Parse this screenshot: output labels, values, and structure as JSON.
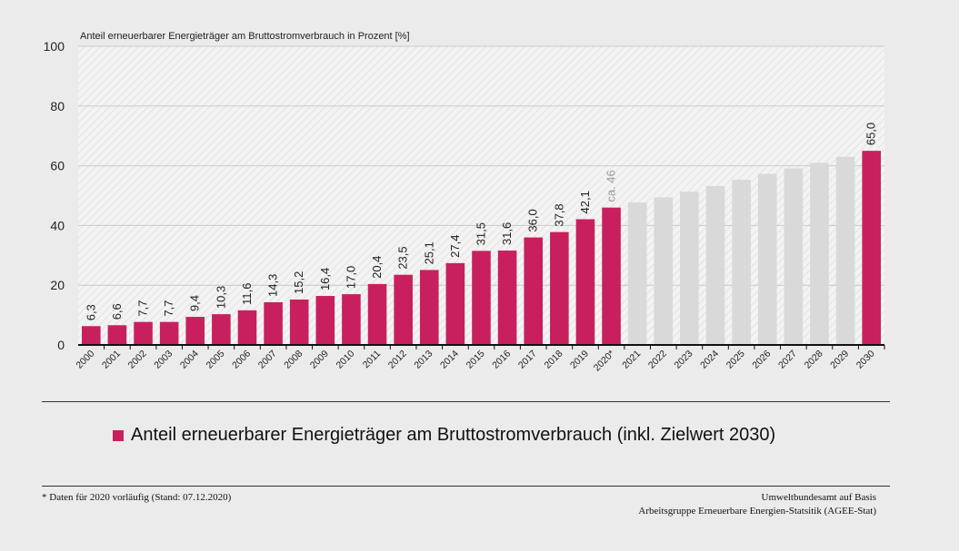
{
  "chart_data": {
    "type": "bar",
    "title": "Anteil erneuerbarer Energieträger am Bruttostromverbrauch in Prozent [%]",
    "ylim": [
      0,
      100
    ],
    "yticks": [
      "0",
      "20",
      "40",
      "60",
      "80",
      "100"
    ],
    "categories": [
      "2000",
      "2001",
      "2002",
      "2003",
      "2004",
      "2005",
      "2006",
      "2007",
      "2008",
      "2009",
      "2010",
      "2011",
      "2012",
      "2013",
      "2014",
      "2015",
      "2016",
      "2017",
      "2018",
      "2019",
      "2020*",
      "2021",
      "2022",
      "2023",
      "2024",
      "2025",
      "2026",
      "2027",
      "2028",
      "2029",
      "2030"
    ],
    "values": [
      6.3,
      6.6,
      7.7,
      7.7,
      9.4,
      10.3,
      11.6,
      14.3,
      15.2,
      16.4,
      17.0,
      20.4,
      23.5,
      25.1,
      27.4,
      31.5,
      31.6,
      36.0,
      37.8,
      42.1,
      46,
      null,
      null,
      null,
      null,
      null,
      null,
      null,
      null,
      null,
      65.0
    ],
    "value_labels": [
      "6,3",
      "6,6",
      "7,7",
      "7,7",
      "9,4",
      "10,3",
      "11,6",
      "14,3",
      "15,2",
      "16,4",
      "17,0",
      "20,4",
      "23,5",
      "25,1",
      "27,4",
      "31,5",
      "31,6",
      "36,0",
      "37,8",
      "42,1",
      "ca. 46",
      "",
      "",
      "",
      "",
      "",
      "",
      "",
      "",
      "",
      "65,0"
    ],
    "trajectory_values": [
      47.7,
      49.4,
      51.3,
      53.2,
      55.3,
      57.3,
      59.1,
      61.0,
      63.0
    ],
    "series": [
      {
        "name": "Anteil erneuerbarer Energieträger am Bruttostromverbrauch (inkl. Zielwert 2030)",
        "color": "#c8205f"
      }
    ],
    "colors": {
      "bar": "#c8205f",
      "trajectory": "#d9d9d9"
    },
    "grid": true,
    "legend_placement": "bottom"
  },
  "footnote": "* Daten für 2020 vorläufig (Stand: 07.12.2020)",
  "source": {
    "line1": "Umweltbundesamt auf Basis",
    "line2": "Arbeitsgruppe Erneuerbare Energien-Statsitik (AGEE-Stat)"
  }
}
